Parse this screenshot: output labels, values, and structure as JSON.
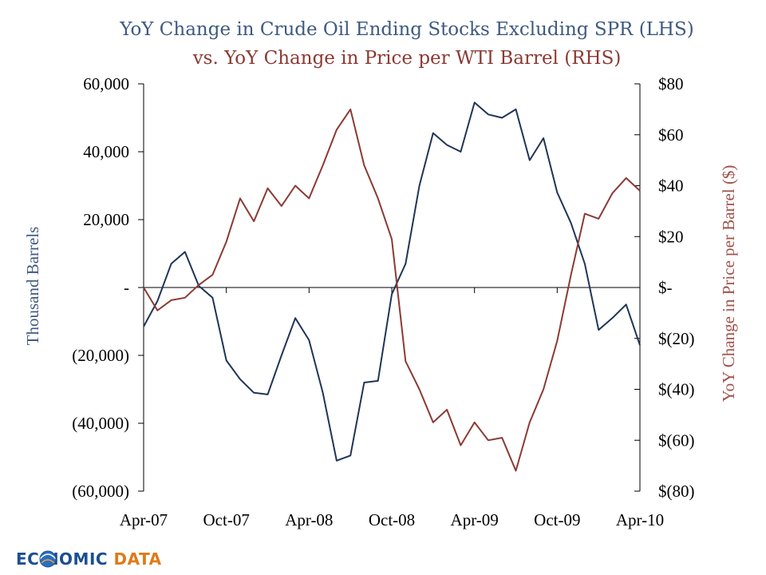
{
  "chart_data": {
    "type": "line",
    "title_line1": "YoY Change in Crude Oil Ending Stocks Excluding SPR (LHS)",
    "title_line2": "vs. YoY Change in Price per WTI Barrel (RHS)",
    "ylabel_left": "Thousand Barrels",
    "ylabel_right": "YoY Change in Price per Barrel ($)",
    "ylim_left": [
      -60000,
      60000
    ],
    "ylim_right": [
      -80,
      80
    ],
    "left_ticks": [
      {
        "value": 60000,
        "label": "60,000"
      },
      {
        "value": 40000,
        "label": "40,000"
      },
      {
        "value": 20000,
        "label": "20,000"
      },
      {
        "value": 0,
        "label": "-"
      },
      {
        "value": -20000,
        "label": "(20,000)"
      },
      {
        "value": -40000,
        "label": "(40,000)"
      },
      {
        "value": -60000,
        "label": "(60,000)"
      }
    ],
    "right_ticks": [
      {
        "value": 80,
        "label": "$80"
      },
      {
        "value": 60,
        "label": "$60"
      },
      {
        "value": 40,
        "label": "$40"
      },
      {
        "value": 20,
        "label": "$20"
      },
      {
        "value": 0,
        "label": "$-"
      },
      {
        "value": -20,
        "label": "$(20)"
      },
      {
        "value": -40,
        "label": "$(40)"
      },
      {
        "value": -60,
        "label": "$(60)"
      },
      {
        "value": -80,
        "label": "$(80)"
      }
    ],
    "x_tick_labels": [
      {
        "index": 0,
        "label": "Apr-07"
      },
      {
        "index": 6,
        "label": "Oct-07"
      },
      {
        "index": 12,
        "label": "Apr-08"
      },
      {
        "index": 18,
        "label": "Oct-08"
      },
      {
        "index": 24,
        "label": "Apr-09"
      },
      {
        "index": 30,
        "label": "Oct-09"
      },
      {
        "index": 36,
        "label": "Apr-10"
      }
    ],
    "x_count": 37,
    "series": [
      {
        "name": "YoY Change in Crude Oil Ending Stocks Excluding SPR",
        "axis": "left",
        "color": "#1f3556",
        "values": [
          -11500,
          -4000,
          7000,
          10500,
          500,
          -3000,
          -21500,
          -27000,
          -31000,
          -31500,
          -20000,
          -9000,
          -15500,
          -31000,
          -51000,
          -49500,
          -28000,
          -27500,
          -2000,
          7000,
          30000,
          45500,
          42000,
          40000,
          54500,
          51000,
          50000,
          52500,
          37500,
          44000,
          28000,
          19000,
          7000,
          -12500,
          -9000,
          -5000,
          -17000
        ]
      },
      {
        "name": "YoY Change in Price per WTI Barrel",
        "axis": "right",
        "color": "#8b3a33",
        "values": [
          0,
          -9,
          -5,
          -4,
          1,
          5,
          18,
          35,
          26,
          39,
          32,
          40,
          35,
          48,
          62,
          70,
          48,
          35,
          19,
          -29,
          -40,
          -53,
          -48,
          -62,
          -53,
          -60,
          -59,
          -72,
          -53,
          -40,
          -21,
          5,
          29,
          27,
          37,
          43,
          38
        ]
      }
    ]
  },
  "logo": {
    "part1": "EC",
    "part2": "NOMIC",
    "part3": "DATA"
  },
  "colors": {
    "left_series": "#1f3556",
    "right_series": "#8b3a33",
    "left_axis_title": "#3e5a80",
    "right_axis_title": "#a0524a",
    "title_line1": "#3e5a80",
    "title_line2": "#8b3a33",
    "logo_blue": "#1b4f93",
    "logo_orange": "#e07a18"
  }
}
